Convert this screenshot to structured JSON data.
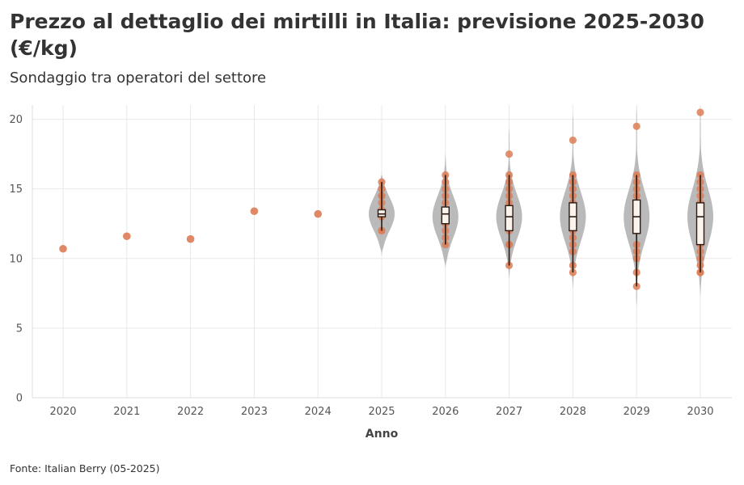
{
  "title": "Prezzo al dettaglio dei mirtilli in Italia: previsione 2025-2030 (€/kg)",
  "subtitle": "Sondaggio tra operatori del settore",
  "source": "Fonte: Italian Berry (05-2025)",
  "colors": {
    "point": "#dd7c55",
    "violin": "#b2b2b2",
    "box_fill": "#fbf4ee",
    "box_stroke": "#2b1a12",
    "grid": "#e9e9e9"
  },
  "chart_data": {
    "type": "violin",
    "xlabel": "Anno",
    "ylabel": "",
    "ylim": [
      0,
      21
    ],
    "yticks": [
      0,
      5,
      10,
      15,
      20
    ],
    "grid": true,
    "categories": [
      "2020",
      "2021",
      "2022",
      "2023",
      "2024",
      "2025",
      "2026",
      "2027",
      "2028",
      "2029",
      "2030"
    ],
    "historical": [
      {
        "x": "2020",
        "y": 10.7
      },
      {
        "x": "2021",
        "y": 11.6
      },
      {
        "x": "2022",
        "y": 11.4
      },
      {
        "x": "2023",
        "y": 13.4
      },
      {
        "x": "2024",
        "y": 13.2
      }
    ],
    "forecasts": [
      {
        "year": "2025",
        "points": [
          15.5,
          15.0,
          14.5,
          14.5,
          14.0,
          13.5,
          13.0,
          12.0,
          12.0
        ],
        "box": {
          "q1": 13.0,
          "median": 13.2,
          "q3": 13.5,
          "whisker_low": 12.0,
          "whisker_high": 15.5
        },
        "violin": {
          "min": 10.2,
          "max": 16.2,
          "center": 13.2,
          "spread": 1.2
        }
      },
      {
        "year": "2026",
        "points": [
          16.0,
          15.5,
          15.0,
          14.5,
          14.0,
          13.0,
          12.5,
          12.0,
          11.5,
          11.0
        ],
        "box": {
          "q1": 12.5,
          "median": 13.2,
          "q3": 13.7,
          "whisker_low": 11.0,
          "whisker_high": 16.0
        },
        "violin": {
          "min": 9.3,
          "max": 17.6,
          "center": 13.0,
          "spread": 1.5
        }
      },
      {
        "year": "2027",
        "points": [
          17.5,
          16.0,
          15.5,
          15.0,
          14.5,
          14.0,
          13.0,
          12.5,
          12.0,
          11.0,
          11.0,
          9.5
        ],
        "box": {
          "q1": 12.0,
          "median": 13.0,
          "q3": 13.8,
          "whisker_low": 9.5,
          "whisker_high": 16.0
        },
        "violin": {
          "min": 8.5,
          "max": 19.5,
          "center": 13.0,
          "spread": 1.6
        }
      },
      {
        "year": "2028",
        "points": [
          18.5,
          16.0,
          15.5,
          15.0,
          14.5,
          14.0,
          13.0,
          12.0,
          11.5,
          11.0,
          10.5,
          9.5,
          9.0
        ],
        "box": {
          "q1": 12.0,
          "median": 13.0,
          "q3": 14.0,
          "whisker_low": 9.0,
          "whisker_high": 16.0
        },
        "violin": {
          "min": 7.8,
          "max": 20.5,
          "center": 13.0,
          "spread": 1.8
        }
      },
      {
        "year": "2029",
        "points": [
          19.5,
          16.0,
          15.5,
          15.0,
          14.5,
          14.0,
          13.0,
          12.0,
          11.0,
          10.5,
          10.0,
          9.0,
          8.0
        ],
        "box": {
          "q1": 11.8,
          "median": 13.0,
          "q3": 14.2,
          "whisker_low": 8.0,
          "whisker_high": 16.0
        },
        "violin": {
          "min": 6.5,
          "max": 21.0,
          "center": 13.0,
          "spread": 1.9
        }
      },
      {
        "year": "2030",
        "points": [
          20.5,
          16.0,
          15.5,
          15.0,
          14.5,
          14.0,
          13.0,
          11.0,
          10.5,
          10.0,
          9.5,
          9.0,
          9.0
        ],
        "box": {
          "q1": 11.0,
          "median": 13.0,
          "q3": 14.0,
          "whisker_low": 9.0,
          "whisker_high": 16.0
        },
        "violin": {
          "min": 7.2,
          "max": 21.0,
          "center": 13.0,
          "spread": 2.0
        }
      }
    ]
  }
}
